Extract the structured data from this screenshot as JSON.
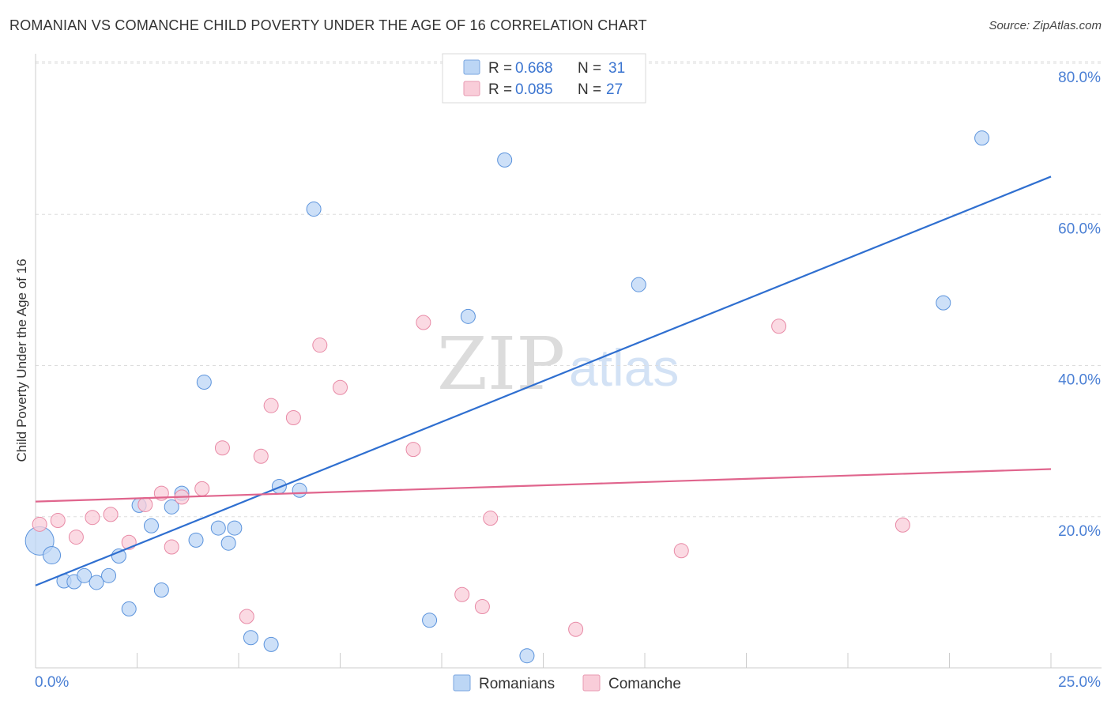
{
  "header": {
    "title": "ROMANIAN VS COMANCHE CHILD POVERTY UNDER THE AGE OF 16 CORRELATION CHART",
    "source": "Source: ZipAtlas.com"
  },
  "watermark": {
    "zip": "ZIP",
    "atlas": "atlas"
  },
  "legend": {
    "rows": [
      {
        "r_label": "R =",
        "r_value": "0.668",
        "n_label": "N =",
        "n_value": "31",
        "color": "#a9c8f0"
      },
      {
        "r_label": "R =",
        "r_value": "0.085",
        "n_label": "N =",
        "n_value": "27",
        "color": "#f7bfd0"
      }
    ]
  },
  "bottom_legend": {
    "series1": "Romanians",
    "series2": "Comanche"
  },
  "chart_data": {
    "type": "scatter",
    "title": "ROMANIAN VS COMANCHE CHILD POVERTY UNDER THE AGE OF 16 CORRELATION CHART",
    "xlabel": "",
    "ylabel": "Child Poverty Under the Age of 16",
    "xlim": [
      0,
      25
    ],
    "ylim": [
      0,
      80
    ],
    "x_tick_labels": [
      "0.0%",
      "25.0%"
    ],
    "y_ticks": [
      20,
      40,
      60,
      80
    ],
    "y_tick_labels": [
      "20.0%",
      "40.0%",
      "60.0%",
      "80.0%"
    ],
    "series": [
      {
        "name": "Romanians",
        "color": "#5b93dc",
        "fill": "#bcd6f5",
        "r": "0.668",
        "n": "31",
        "trend": {
          "x": [
            0,
            25
          ],
          "y": [
            10.9,
            65.0
          ],
          "color": "#2f6fd0"
        },
        "points": [
          {
            "x": 0.1,
            "y": 16.8,
            "s": 18
          },
          {
            "x": 0.4,
            "y": 14.9,
            "s": 11
          },
          {
            "x": 0.7,
            "y": 11.5,
            "s": 9
          },
          {
            "x": 0.95,
            "y": 11.4,
            "s": 9
          },
          {
            "x": 1.2,
            "y": 12.2,
            "s": 9
          },
          {
            "x": 1.5,
            "y": 11.3,
            "s": 9
          },
          {
            "x": 1.8,
            "y": 12.2,
            "s": 9
          },
          {
            "x": 2.05,
            "y": 14.8,
            "s": 9
          },
          {
            "x": 2.3,
            "y": 7.8,
            "s": 9
          },
          {
            "x": 2.55,
            "y": 21.5,
            "s": 9
          },
          {
            "x": 2.85,
            "y": 18.8,
            "s": 9
          },
          {
            "x": 3.1,
            "y": 10.3,
            "s": 9
          },
          {
            "x": 3.35,
            "y": 21.3,
            "s": 9
          },
          {
            "x": 3.6,
            "y": 23.1,
            "s": 9
          },
          {
            "x": 3.95,
            "y": 16.9,
            "s": 9
          },
          {
            "x": 4.15,
            "y": 37.8,
            "s": 9
          },
          {
            "x": 4.5,
            "y": 18.5,
            "s": 9
          },
          {
            "x": 4.75,
            "y": 16.5,
            "s": 9
          },
          {
            "x": 4.9,
            "y": 18.5,
            "s": 9
          },
          {
            "x": 5.3,
            "y": 4.0,
            "s": 9
          },
          {
            "x": 5.8,
            "y": 3.1,
            "s": 9
          },
          {
            "x": 6.0,
            "y": 24.0,
            "s": 9
          },
          {
            "x": 6.5,
            "y": 23.5,
            "s": 9
          },
          {
            "x": 6.85,
            "y": 60.7,
            "s": 9
          },
          {
            "x": 9.7,
            "y": 6.3,
            "s": 9
          },
          {
            "x": 10.65,
            "y": 46.5,
            "s": 9
          },
          {
            "x": 11.55,
            "y": 67.2,
            "s": 9
          },
          {
            "x": 12.1,
            "y": 1.6,
            "s": 9
          },
          {
            "x": 14.85,
            "y": 50.7,
            "s": 9
          },
          {
            "x": 22.35,
            "y": 48.3,
            "s": 9
          },
          {
            "x": 23.3,
            "y": 70.1,
            "s": 9
          }
        ]
      },
      {
        "name": "Comanche",
        "color": "#e88aa6",
        "fill": "#f9cdd9",
        "r": "0.085",
        "n": "27",
        "trend": {
          "x": [
            0,
            25
          ],
          "y": [
            22.0,
            26.3
          ],
          "color": "#e0658d"
        },
        "points": [
          {
            "x": 0.1,
            "y": 19.0,
            "s": 9
          },
          {
            "x": 0.55,
            "y": 19.5,
            "s": 9
          },
          {
            "x": 1.0,
            "y": 17.3,
            "s": 9
          },
          {
            "x": 1.4,
            "y": 19.9,
            "s": 9
          },
          {
            "x": 1.85,
            "y": 20.3,
            "s": 9
          },
          {
            "x": 2.3,
            "y": 16.6,
            "s": 9
          },
          {
            "x": 2.7,
            "y": 21.6,
            "s": 9
          },
          {
            "x": 3.35,
            "y": 16.0,
            "s": 9
          },
          {
            "x": 3.1,
            "y": 23.1,
            "s": 9
          },
          {
            "x": 3.6,
            "y": 22.6,
            "s": 9
          },
          {
            "x": 4.1,
            "y": 23.7,
            "s": 9
          },
          {
            "x": 4.6,
            "y": 29.1,
            "s": 9
          },
          {
            "x": 5.2,
            "y": 6.8,
            "s": 9
          },
          {
            "x": 5.55,
            "y": 28.0,
            "s": 9
          },
          {
            "x": 5.8,
            "y": 34.7,
            "s": 9
          },
          {
            "x": 6.35,
            "y": 33.1,
            "s": 9
          },
          {
            "x": 7.0,
            "y": 42.7,
            "s": 9
          },
          {
            "x": 7.5,
            "y": 37.1,
            "s": 9
          },
          {
            "x": 9.3,
            "y": 28.9,
            "s": 9
          },
          {
            "x": 9.55,
            "y": 45.7,
            "s": 9
          },
          {
            "x": 10.5,
            "y": 9.7,
            "s": 9
          },
          {
            "x": 11.0,
            "y": 8.1,
            "s": 9
          },
          {
            "x": 11.2,
            "y": 19.8,
            "s": 9
          },
          {
            "x": 13.3,
            "y": 5.1,
            "s": 9
          },
          {
            "x": 15.9,
            "y": 15.5,
            "s": 9
          },
          {
            "x": 18.3,
            "y": 45.2,
            "s": 9
          },
          {
            "x": 21.35,
            "y": 18.9,
            "s": 9
          }
        ]
      }
    ]
  }
}
